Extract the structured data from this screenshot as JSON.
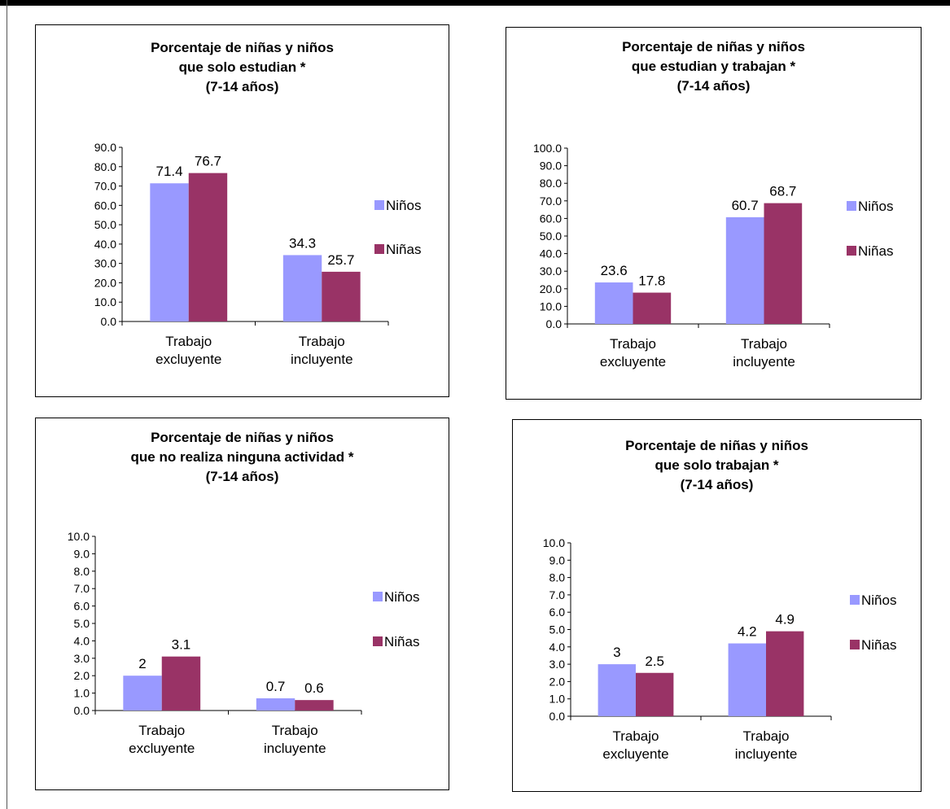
{
  "colors": {
    "ninos": "#9999ff",
    "ninas": "#993366"
  },
  "chart_data": [
    {
      "type": "bar",
      "title_lines": [
        "Porcentaje de niñas y niños",
        "que solo estudian *",
        "(7-14 años)"
      ],
      "categories": [
        [
          "Trabajo",
          "excluyente"
        ],
        [
          "Trabajo",
          "incluyente"
        ]
      ],
      "series": [
        {
          "name": "Niños",
          "values": [
            71.4,
            34.3
          ],
          "labels": [
            "71.4",
            "34.3"
          ]
        },
        {
          "name": "Niñas",
          "values": [
            76.7,
            25.7
          ],
          "labels": [
            "76.7",
            "25.7"
          ]
        }
      ],
      "ylim": [
        0,
        90
      ],
      "ystep": 10,
      "yticks": [
        "0.0",
        "10.0",
        "20.0",
        "30.0",
        "40.0",
        "50.0",
        "60.0",
        "70.0",
        "80.0",
        "90.0"
      ],
      "legend": "right"
    },
    {
      "type": "bar",
      "title_lines": [
        "Porcentaje de niñas y niños",
        "que estudian y trabajan *",
        "(7-14 años)"
      ],
      "categories": [
        [
          "Trabajo",
          "excluyente"
        ],
        [
          "Trabajo",
          "incluyente"
        ]
      ],
      "series": [
        {
          "name": "Niños",
          "values": [
            23.6,
            60.7
          ],
          "labels": [
            "23.6",
            "60.7"
          ]
        },
        {
          "name": "Niñas",
          "values": [
            17.8,
            68.7
          ],
          "labels": [
            "17.8",
            "68.7"
          ]
        }
      ],
      "ylim": [
        0,
        100
      ],
      "ystep": 10,
      "yticks": [
        "0.0",
        "10.0",
        "20.0",
        "30.0",
        "40.0",
        "50.0",
        "60.0",
        "70.0",
        "80.0",
        "90.0",
        "100.0"
      ],
      "legend": "right"
    },
    {
      "type": "bar",
      "title_lines": [
        "Porcentaje de niñas y niños",
        "que no realiza ninguna actividad *",
        "(7-14 años)"
      ],
      "categories": [
        [
          "Trabajo",
          "excluyente"
        ],
        [
          "Trabajo",
          "incluyente"
        ]
      ],
      "series": [
        {
          "name": "Niños",
          "values": [
            2,
            0.7
          ],
          "labels": [
            "2",
            "0.7"
          ]
        },
        {
          "name": "Niñas",
          "values": [
            3.1,
            0.6
          ],
          "labels": [
            "3.1",
            "0.6"
          ]
        }
      ],
      "ylim": [
        0,
        10
      ],
      "ystep": 1,
      "yticks": [
        "0.0",
        "1.0",
        "2.0",
        "3.0",
        "4.0",
        "5.0",
        "6.0",
        "7.0",
        "8.0",
        "9.0",
        "10.0"
      ],
      "legend": "right"
    },
    {
      "type": "bar",
      "title_lines": [
        "Porcentaje de niñas y niños",
        "que solo trabajan *",
        "(7-14 años)"
      ],
      "categories": [
        [
          "Trabajo",
          "excluyente"
        ],
        [
          "Trabajo",
          "incluyente"
        ]
      ],
      "series": [
        {
          "name": "Niños",
          "values": [
            3,
            4.2
          ],
          "labels": [
            "3",
            "4.2"
          ]
        },
        {
          "name": "Niñas",
          "values": [
            2.5,
            4.9
          ],
          "labels": [
            "2.5",
            "4.9"
          ]
        }
      ],
      "ylim": [
        0,
        10
      ],
      "ystep": 1,
      "yticks": [
        "0.0",
        "1.0",
        "2.0",
        "3.0",
        "4.0",
        "5.0",
        "6.0",
        "7.0",
        "8.0",
        "9.0",
        "10.0"
      ],
      "legend": "right"
    }
  ]
}
